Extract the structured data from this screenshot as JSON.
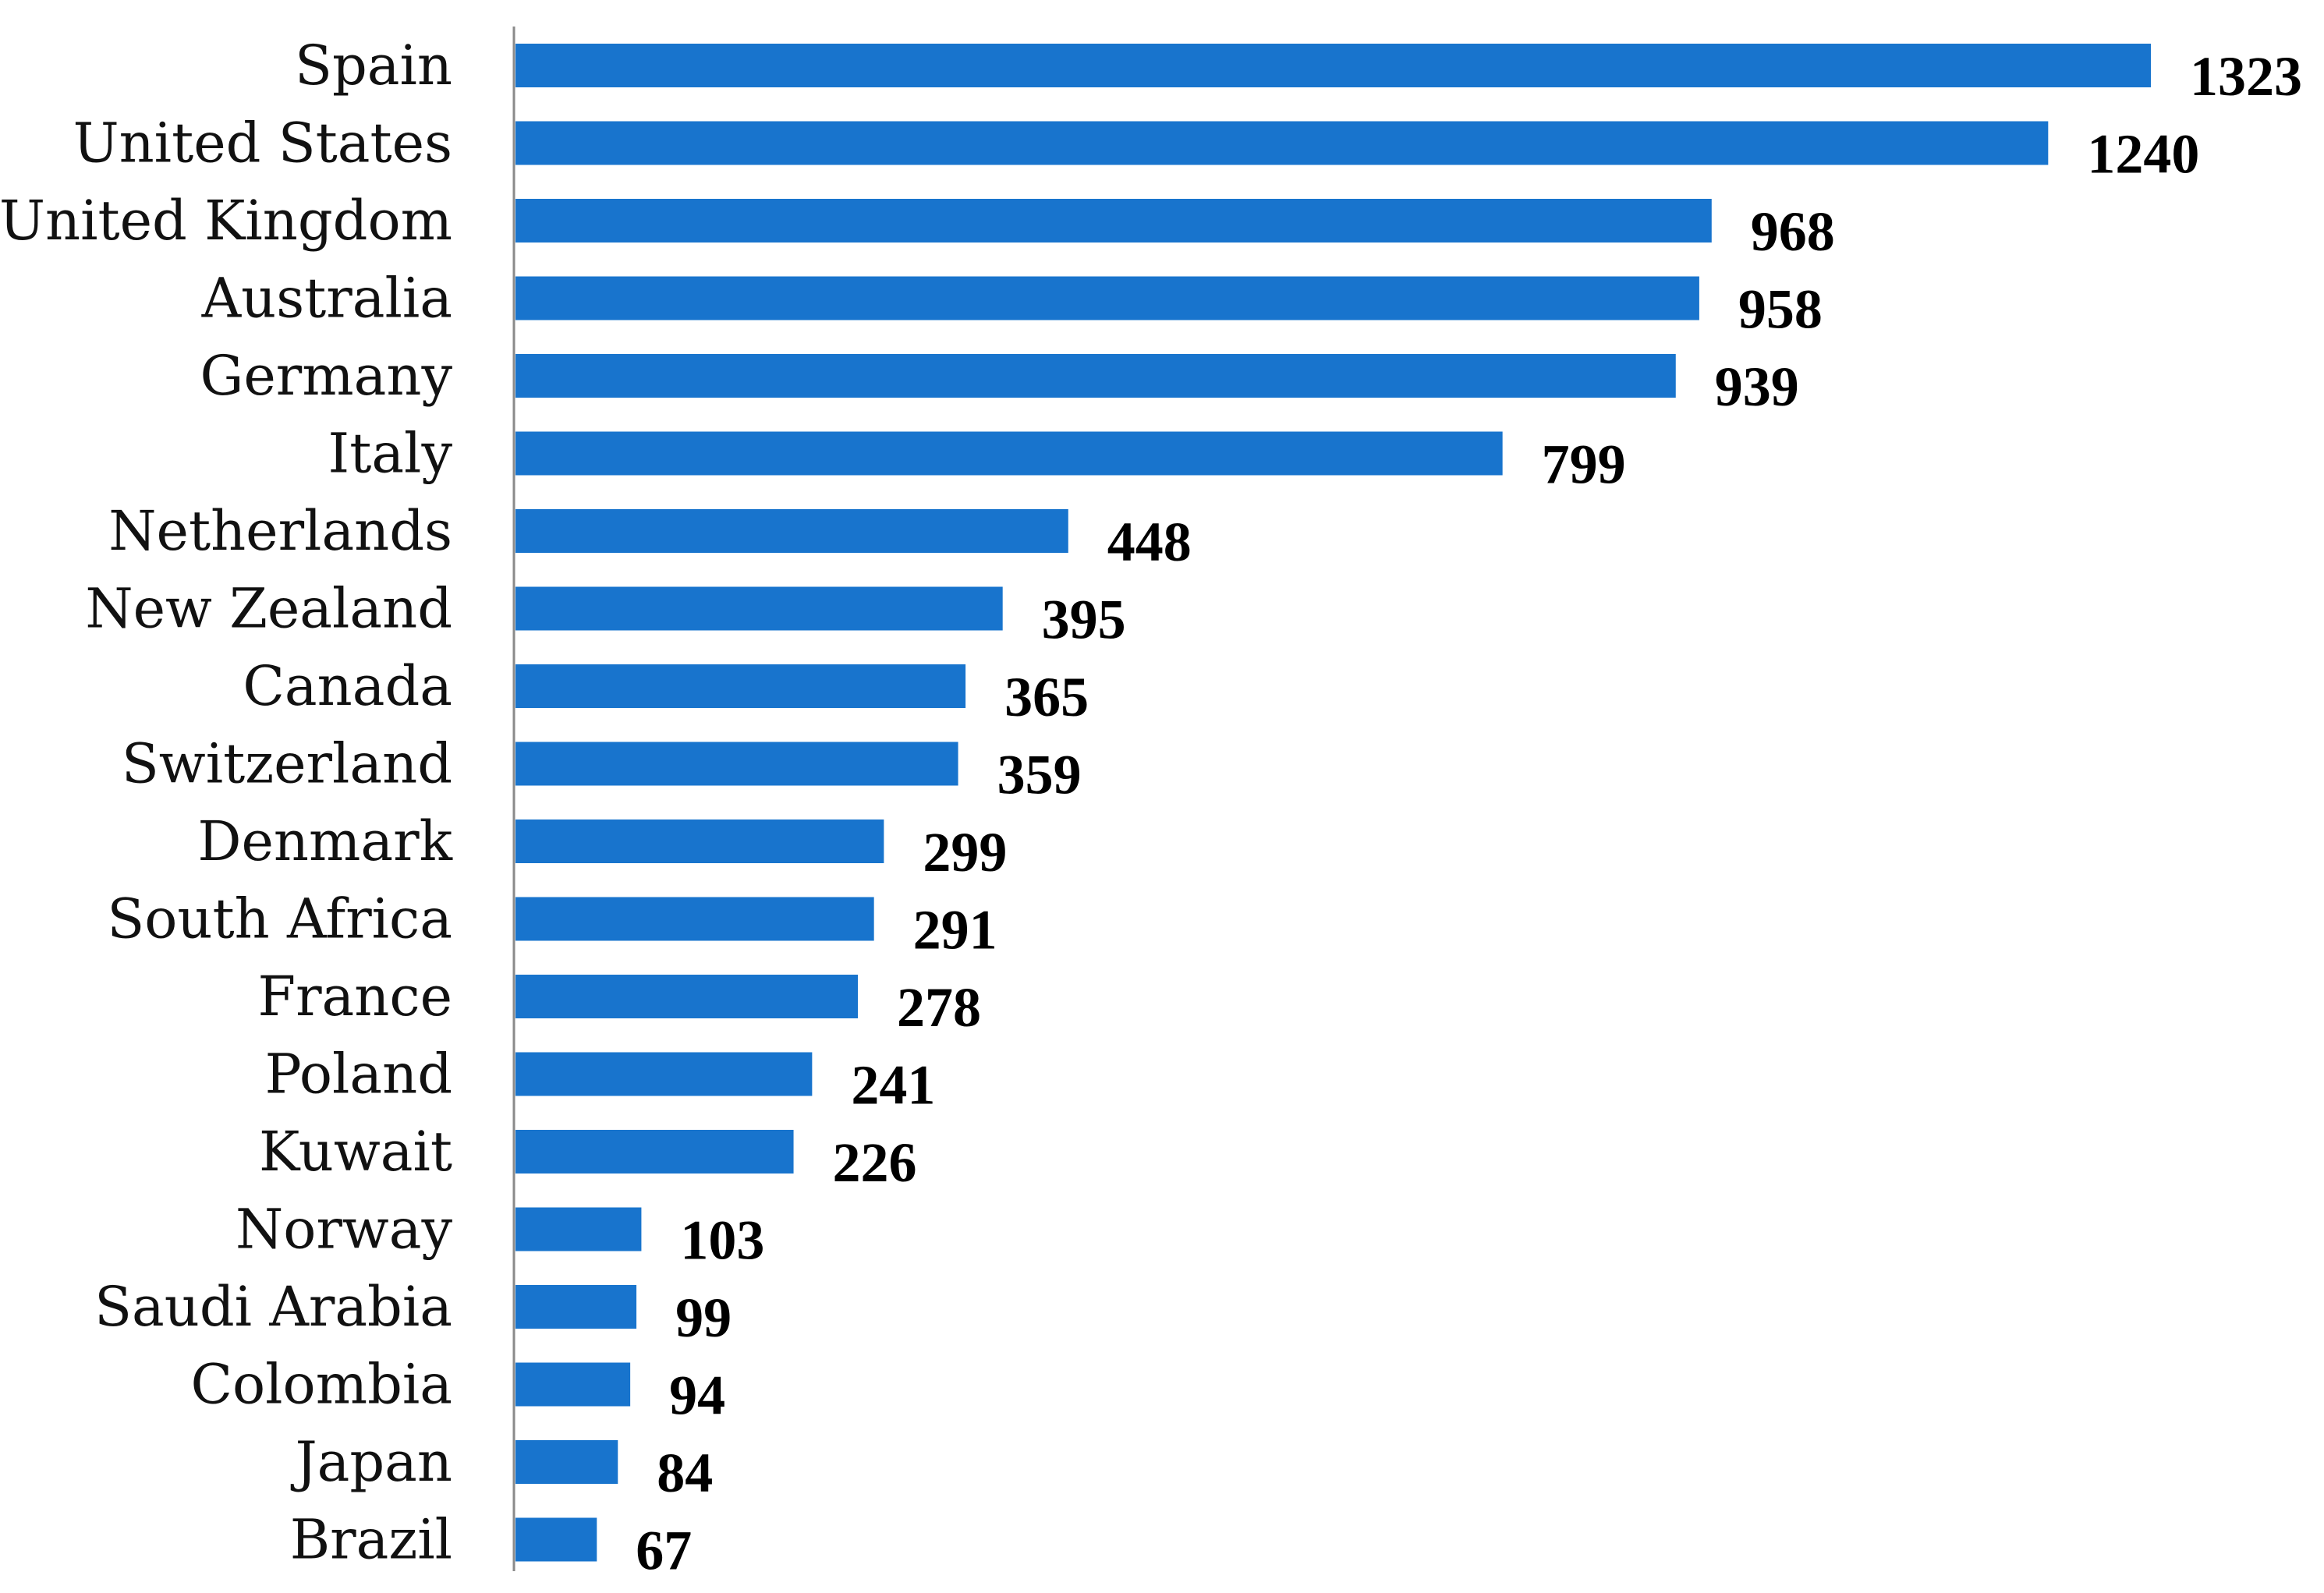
{
  "chart_data": {
    "type": "bar",
    "orientation": "horizontal",
    "categories": [
      "Spain",
      "United States",
      "United Kingdom",
      "Australia",
      "Germany",
      "Italy",
      "Netherlands",
      "New Zealand",
      "Canada",
      "Switzerland",
      "Denmark",
      "South Africa",
      "France",
      "Poland",
      "Kuwait",
      "Norway",
      "Saudi Arabia",
      "Colombia",
      "Japan",
      "Brazil"
    ],
    "values": [
      1323,
      1240,
      968,
      958,
      939,
      799,
      448,
      395,
      365,
      359,
      299,
      291,
      278,
      241,
      226,
      103,
      99,
      94,
      84,
      67
    ],
    "title": "",
    "xlabel": "",
    "ylabel": "",
    "xlim": [
      0,
      1323
    ],
    "grid": false,
    "legend": "none",
    "data_labels": true,
    "colors": {
      "bar": "#1874CD",
      "axis": "#8a8a8a",
      "label_text": "#000000"
    }
  }
}
